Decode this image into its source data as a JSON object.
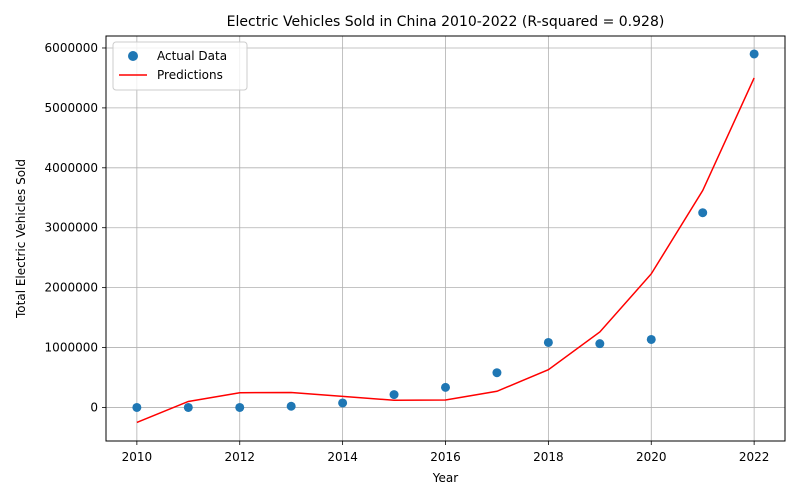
{
  "chart_data": {
    "type": "scatter",
    "title": "Electric Vehicles Sold in China 2010-2022 (R-squared = 0.928)",
    "xlabel": "Year",
    "ylabel": "Total Electric Vehicles Sold",
    "xlim": [
      2009.4,
      2022.6
    ],
    "ylim": [
      -560000,
      6200000
    ],
    "xticks": [
      2010,
      2012,
      2014,
      2016,
      2018,
      2020,
      2022
    ],
    "yticks": [
      0,
      1000000,
      2000000,
      3000000,
      4000000,
      5000000,
      6000000
    ],
    "grid": true,
    "legend_position": "top-left",
    "series": [
      {
        "name": "Actual Data",
        "kind": "scatter",
        "color": "#1f77b4",
        "x": [
          2010,
          2011,
          2012,
          2013,
          2014,
          2015,
          2016,
          2017,
          2018,
          2019,
          2020,
          2021,
          2022
        ],
        "y": [
          0,
          0,
          0,
          20000,
          75000,
          215000,
          335000,
          580000,
          1085000,
          1065000,
          1135000,
          3250000,
          5900000
        ]
      },
      {
        "name": "Predictions",
        "kind": "line",
        "color": "#ff0000",
        "x": [
          2010,
          2011,
          2012,
          2013,
          2014,
          2015,
          2016,
          2017,
          2018,
          2019,
          2020,
          2021,
          2022
        ],
        "y": [
          -250000,
          100000,
          245000,
          250000,
          185000,
          120000,
          125000,
          270000,
          630000,
          1260000,
          2230000,
          3620000,
          5500000
        ]
      }
    ]
  }
}
